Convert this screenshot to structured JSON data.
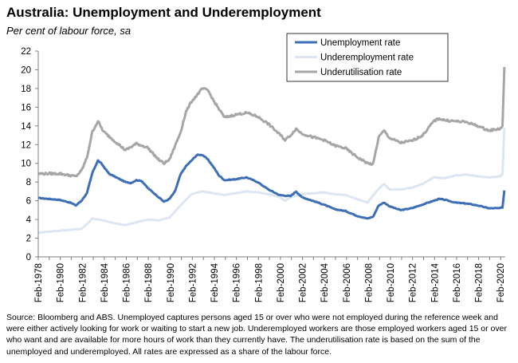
{
  "header": {
    "title": "Australia: Unemployment and Underemployment",
    "subtitle": "Per cent of labour force, sa"
  },
  "footer": {
    "source": "Source: Bloomberg and ABS. Unemployed captures persons aged 15 or over who were not employed during the reference week and were either actively looking for work or waiting to start a new job.  Underemployed workers are those employed workers aged 15 or over who want and are available for more hours of work than they currently have.  The underutilisation rate is based on the sum of the unemployed and underemployed. All rates are expressed as a share of the labour force."
  },
  "colors": {
    "unemployment": "#3e6fb6",
    "underemployment": "#dce6f2",
    "underutilisation": "#a6a6a6",
    "axis": "#7f7f7f"
  },
  "chart_data": {
    "type": "line",
    "title": "Australia: Unemployment and Underemployment",
    "subtitle": "Per cent of labour force, sa",
    "xlabel": "",
    "ylabel": "",
    "ylim": [
      0,
      22
    ],
    "yticks": [
      "0",
      "2",
      "4",
      "6",
      "8",
      "10",
      "12",
      "14",
      "16",
      "18",
      "20",
      "22"
    ],
    "xlim": [
      1978.08,
      2020.5
    ],
    "xticks": [
      {
        "x": 1978.08,
        "label": "Feb-1978"
      },
      {
        "x": 1980.08,
        "label": "Feb-1980"
      },
      {
        "x": 1982.08,
        "label": "Feb-1982"
      },
      {
        "x": 1984.08,
        "label": "Feb-1984"
      },
      {
        "x": 1986.08,
        "label": "Feb-1986"
      },
      {
        "x": 1988.08,
        "label": "Feb-1988"
      },
      {
        "x": 1990.08,
        "label": "Feb-1990"
      },
      {
        "x": 1992.08,
        "label": "Feb-1992"
      },
      {
        "x": 1994.08,
        "label": "Feb-1994"
      },
      {
        "x": 1996.08,
        "label": "Feb-1996"
      },
      {
        "x": 1998.08,
        "label": "Feb-1998"
      },
      {
        "x": 2000.08,
        "label": "Feb-2000"
      },
      {
        "x": 2002.08,
        "label": "Feb-2002"
      },
      {
        "x": 2004.08,
        "label": "Feb-2004"
      },
      {
        "x": 2006.08,
        "label": "Feb-2006"
      },
      {
        "x": 2008.08,
        "label": "Feb-2008"
      },
      {
        "x": 2010.08,
        "label": "Feb-2010"
      },
      {
        "x": 2012.08,
        "label": "Feb-2012"
      },
      {
        "x": 2014.08,
        "label": "Feb-2014"
      },
      {
        "x": 2016.08,
        "label": "Feb-2016"
      },
      {
        "x": 2018.08,
        "label": "Feb-2018"
      },
      {
        "x": 2020.08,
        "label": "Feb-2020"
      }
    ],
    "grid": false,
    "legend_position": "top-right",
    "series": [
      {
        "name": "Unemployment rate",
        "color": "#3e6fb6",
        "points": [
          [
            1978.08,
            6.3
          ],
          [
            1979,
            6.2
          ],
          [
            1980,
            6.1
          ],
          [
            1981,
            5.8
          ],
          [
            1981.5,
            5.5
          ],
          [
            1982,
            6.0
          ],
          [
            1982.5,
            6.8
          ],
          [
            1983,
            9.0
          ],
          [
            1983.5,
            10.3
          ],
          [
            1983.8,
            10.0
          ],
          [
            1984.5,
            8.9
          ],
          [
            1985,
            8.6
          ],
          [
            1986,
            8.0
          ],
          [
            1986.5,
            7.9
          ],
          [
            1987,
            8.2
          ],
          [
            1987.5,
            8.1
          ],
          [
            1988,
            7.4
          ],
          [
            1989,
            6.4
          ],
          [
            1989.5,
            5.9
          ],
          [
            1990,
            6.2
          ],
          [
            1990.5,
            7.0
          ],
          [
            1991,
            8.8
          ],
          [
            1991.5,
            9.7
          ],
          [
            1992,
            10.3
          ],
          [
            1992.5,
            10.9
          ],
          [
            1993,
            10.9
          ],
          [
            1993.5,
            10.4
          ],
          [
            1994,
            9.6
          ],
          [
            1994.5,
            8.7
          ],
          [
            1995,
            8.2
          ],
          [
            1996,
            8.3
          ],
          [
            1997,
            8.5
          ],
          [
            1998,
            8.0
          ],
          [
            1999,
            7.2
          ],
          [
            2000,
            6.6
          ],
          [
            2001,
            6.5
          ],
          [
            2001.5,
            7.0
          ],
          [
            2002,
            6.4
          ],
          [
            2003,
            6.0
          ],
          [
            2004,
            5.6
          ],
          [
            2005,
            5.1
          ],
          [
            2006,
            4.9
          ],
          [
            2007,
            4.4
          ],
          [
            2008,
            4.1
          ],
          [
            2008.5,
            4.3
          ],
          [
            2009,
            5.5
          ],
          [
            2009.5,
            5.8
          ],
          [
            2010,
            5.4
          ],
          [
            2011,
            5.0
          ],
          [
            2012,
            5.2
          ],
          [
            2013,
            5.6
          ],
          [
            2014,
            6.0
          ],
          [
            2014.5,
            6.2
          ],
          [
            2015,
            6.1
          ],
          [
            2016,
            5.8
          ],
          [
            2017,
            5.7
          ],
          [
            2018,
            5.5
          ],
          [
            2019,
            5.2
          ],
          [
            2020,
            5.2
          ],
          [
            2020.25,
            5.3
          ],
          [
            2020.42,
            7.1
          ]
        ]
      },
      {
        "name": "Underemployment rate",
        "color": "#dce6f2",
        "points": [
          [
            1978.08,
            2.6
          ],
          [
            1979,
            2.7
          ],
          [
            1980,
            2.8
          ],
          [
            1981,
            2.9
          ],
          [
            1982,
            3.0
          ],
          [
            1982.5,
            3.5
          ],
          [
            1983,
            4.1
          ],
          [
            1984,
            3.9
          ],
          [
            1985,
            3.6
          ],
          [
            1986,
            3.4
          ],
          [
            1987,
            3.7
          ],
          [
            1988,
            4.0
          ],
          [
            1989,
            3.9
          ],
          [
            1990,
            4.2
          ],
          [
            1991,
            5.5
          ],
          [
            1992,
            6.7
          ],
          [
            1993,
            7.0
          ],
          [
            1994,
            6.8
          ],
          [
            1995,
            6.6
          ],
          [
            1996,
            6.8
          ],
          [
            1997,
            7.0
          ],
          [
            1998,
            6.9
          ],
          [
            1999,
            6.7
          ],
          [
            2000,
            6.4
          ],
          [
            2000.5,
            6.0
          ],
          [
            2001,
            6.4
          ],
          [
            2002,
            6.7
          ],
          [
            2003,
            6.8
          ],
          [
            2004,
            6.9
          ],
          [
            2005,
            6.7
          ],
          [
            2006,
            6.6
          ],
          [
            2007,
            6.2
          ],
          [
            2008,
            5.8
          ],
          [
            2009,
            7.3
          ],
          [
            2009.5,
            7.8
          ],
          [
            2010,
            7.2
          ],
          [
            2011,
            7.2
          ],
          [
            2012,
            7.4
          ],
          [
            2013,
            7.8
          ],
          [
            2014,
            8.5
          ],
          [
            2015,
            8.4
          ],
          [
            2016,
            8.7
          ],
          [
            2017,
            8.8
          ],
          [
            2018,
            8.6
          ],
          [
            2019,
            8.5
          ],
          [
            2020,
            8.6
          ],
          [
            2020.25,
            8.8
          ],
          [
            2020.42,
            13.8
          ]
        ]
      },
      {
        "name": "Underutilisation rate",
        "color": "#a6a6a6",
        "points": [
          [
            1978.08,
            8.9
          ],
          [
            1979,
            8.9
          ],
          [
            1980,
            8.9
          ],
          [
            1981,
            8.7
          ],
          [
            1981.5,
            8.6
          ],
          [
            1982,
            9.2
          ],
          [
            1982.5,
            10.6
          ],
          [
            1983,
            13.4
          ],
          [
            1983.5,
            14.5
          ],
          [
            1984,
            13.4
          ],
          [
            1985,
            12.4
          ],
          [
            1986,
            11.4
          ],
          [
            1987,
            12.1
          ],
          [
            1988,
            11.7
          ],
          [
            1989,
            10.4
          ],
          [
            1989.5,
            10.0
          ],
          [
            1990,
            10.4
          ],
          [
            1991,
            13.3
          ],
          [
            1991.5,
            15.5
          ],
          [
            1992,
            16.6
          ],
          [
            1992.5,
            17.3
          ],
          [
            1993,
            18.0
          ],
          [
            1993.5,
            17.8
          ],
          [
            1994,
            16.7
          ],
          [
            1995,
            14.9
          ],
          [
            1996,
            15.2
          ],
          [
            1997,
            15.4
          ],
          [
            1998,
            15.0
          ],
          [
            1999,
            14.2
          ],
          [
            2000,
            13.1
          ],
          [
            2000.5,
            12.5
          ],
          [
            2001,
            13.0
          ],
          [
            2001.5,
            13.7
          ],
          [
            2002,
            13.2
          ],
          [
            2003,
            12.8
          ],
          [
            2004,
            12.5
          ],
          [
            2005,
            11.9
          ],
          [
            2006,
            11.6
          ],
          [
            2007,
            10.7
          ],
          [
            2008,
            10.0
          ],
          [
            2008.5,
            9.9
          ],
          [
            2009,
            12.8
          ],
          [
            2009.5,
            13.5
          ],
          [
            2010,
            12.7
          ],
          [
            2011,
            12.2
          ],
          [
            2012,
            12.4
          ],
          [
            2013,
            13.0
          ],
          [
            2014,
            14.5
          ],
          [
            2014.5,
            14.8
          ],
          [
            2015,
            14.6
          ],
          [
            2016,
            14.5
          ],
          [
            2017,
            14.4
          ],
          [
            2018,
            14.0
          ],
          [
            2019,
            13.5
          ],
          [
            2020,
            13.7
          ],
          [
            2020.25,
            13.9
          ],
          [
            2020.42,
            20.3
          ]
        ]
      }
    ]
  }
}
